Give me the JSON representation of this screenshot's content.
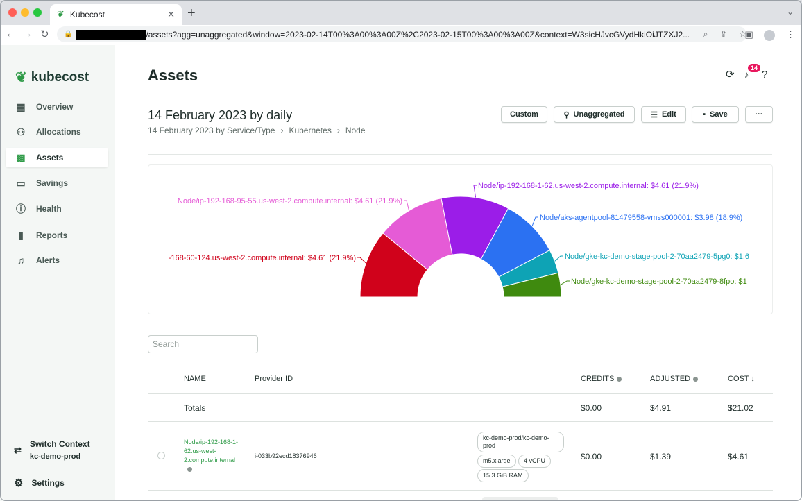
{
  "browser": {
    "tab_title": "Kubecost",
    "url": "/assets?agg=unaggregated&window=2023-02-14T00%3A00%3A00Z%2C2023-02-15T00%3A00%3A00Z&context=W3sicHJvcGVydHkiOiJTZXJ2..."
  },
  "sidebar": {
    "logo": "kubecost",
    "items": [
      {
        "label": "Overview",
        "icon": "grid-icon"
      },
      {
        "label": "Allocations",
        "icon": "nodes-icon"
      },
      {
        "label": "Assets",
        "icon": "assets-icon"
      },
      {
        "label": "Savings",
        "icon": "wallet-icon"
      },
      {
        "label": "Health",
        "icon": "alert-circle-icon"
      },
      {
        "label": "Reports",
        "icon": "bar-chart-icon"
      },
      {
        "label": "Alerts",
        "icon": "bell-icon"
      }
    ],
    "active_index": 2,
    "switch_context_label": "Switch Context",
    "context_name": "kc-demo-prod",
    "settings_label": "Settings"
  },
  "header": {
    "title": "Assets",
    "notification_count": "14"
  },
  "report": {
    "title": "14 February 2023 by daily",
    "breadcrumbs": [
      "14 February 2023 by Service/Type",
      "Kubernetes",
      "Node"
    ],
    "buttons": {
      "custom": "Custom",
      "aggregate": "Unaggregated",
      "edit": "Edit",
      "save": "Save",
      "more": "···"
    }
  },
  "chart_data": {
    "type": "pie",
    "variant": "half-donut",
    "slices": [
      {
        "label": "-168-60-124.us-west-2.compute.internal: $4.61 (21.9%)",
        "value": 21.9,
        "color": "#d0021b"
      },
      {
        "label": "Node/ip-192-168-95-55.us-west-2.compute.internal: $4.61 (21.9%)",
        "value": 21.9,
        "color": "#e55bd6"
      },
      {
        "label": "Node/ip-192-168-1-62.us-west-2.compute.internal: $4.61 (21.9%)",
        "value": 21.9,
        "color": "#9b1de8"
      },
      {
        "label": "Node/aks-agentpool-81479558-vmss000001: $3.98 (18.9%)",
        "value": 18.9,
        "color": "#2b71f2"
      },
      {
        "label": "Node/gke-kc-demo-stage-pool-2-70aa2479-5pg0: $1.6",
        "value": 7.7,
        "color": "#0ea3b5"
      },
      {
        "label": "Node/gke-kc-demo-stage-pool-2-70aa2479-8fpo: $1",
        "value": 7.7,
        "color": "#3f8a0f"
      }
    ]
  },
  "search": {
    "placeholder": "Search"
  },
  "table": {
    "columns": {
      "name": "NAME",
      "provider": "Provider ID",
      "credits": "CREDITS",
      "adjusted": "ADJUSTED",
      "cost": "COST ↓"
    },
    "totals": {
      "label": "Totals",
      "credits": "$0.00",
      "adjusted": "$4.91",
      "cost": "$21.02"
    },
    "rows": [
      {
        "name": "Node/ip-192-168-1-62.us-west-2.compute.internal",
        "provider_id": "i-033b92ecd18376946",
        "chips": [
          "kc-demo-prod/kc-demo-prod",
          "m5.xlarge",
          "4 vCPU",
          "15.3 GiB RAM"
        ],
        "credits": "$0.00",
        "adjusted": "$1.39",
        "cost": "$4.61"
      }
    ]
  }
}
